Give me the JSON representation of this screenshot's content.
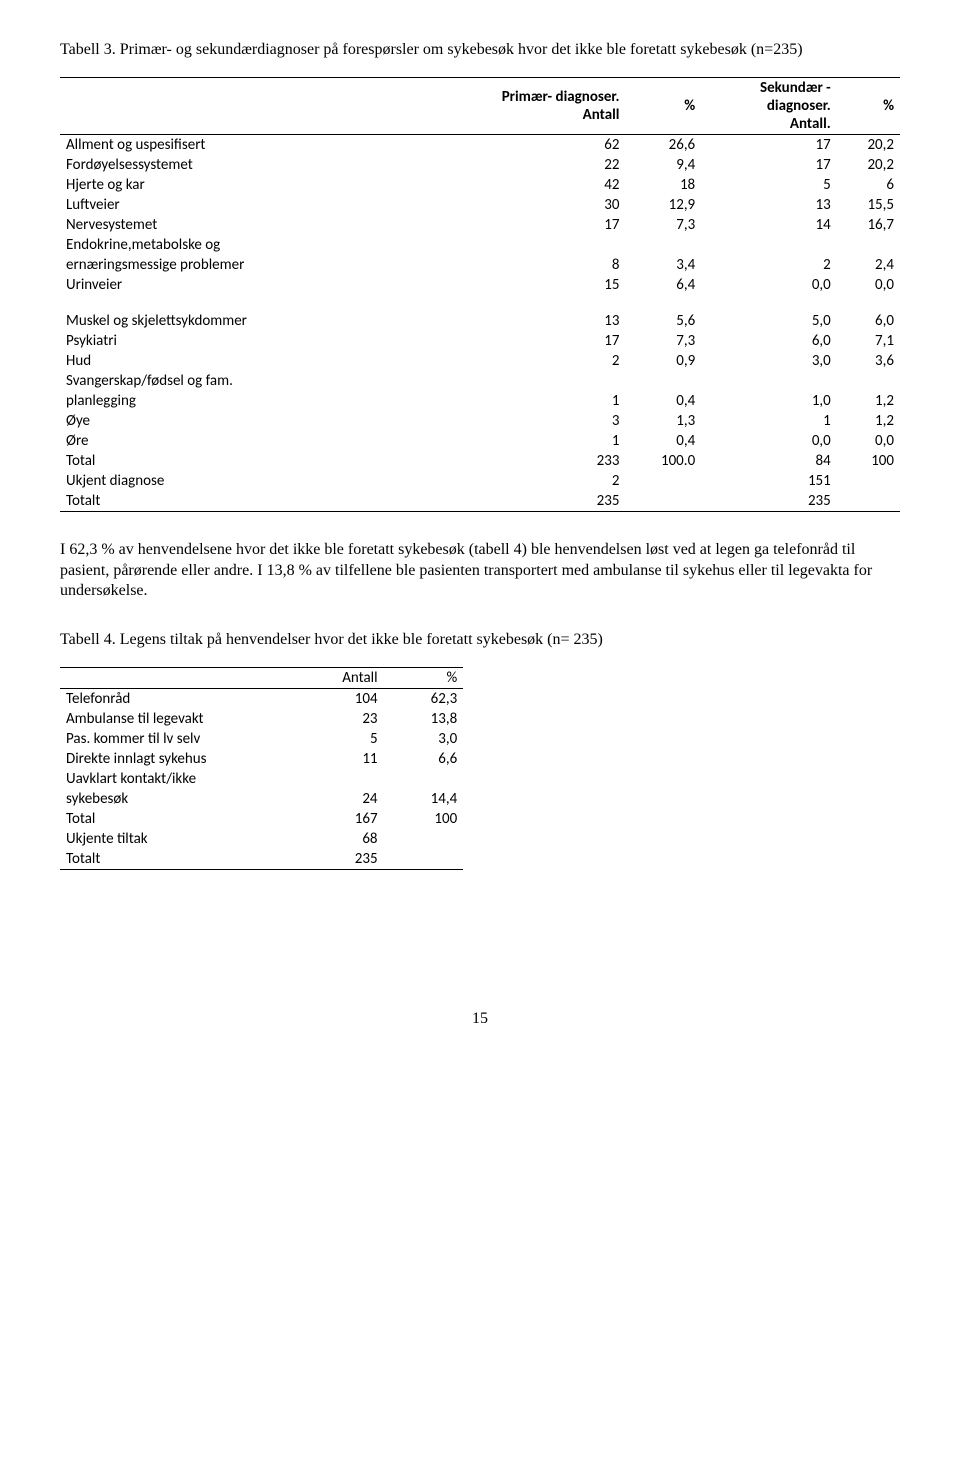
{
  "table3": {
    "caption": "Tabell 3. Primær- og sekundærdiagnoser på forespørsler om sykebesøk hvor det ikke ble foretatt sykebesøk (n=235)",
    "header": {
      "col1": "",
      "col2_line1": "Primær- diagnoser.",
      "col2_line2": "Antall",
      "col3": "%",
      "col4_line1": "Sekundær -",
      "col4_line2": "diagnoser.",
      "col4_line3": "Antall.",
      "col5": "%"
    },
    "rows1": [
      {
        "label": "Allment og uspesifisert",
        "c2": "62",
        "c3": "26,6",
        "c4": "17",
        "c5": "20,2"
      },
      {
        "label": "Fordøyelsessystemet",
        "c2": "22",
        "c3": "9,4",
        "c4": "17",
        "c5": "20,2"
      },
      {
        "label": "Hjerte og kar",
        "c2": "42",
        "c3": "18",
        "c4": "5",
        "c5": "6"
      },
      {
        "label": "Luftveier",
        "c2": "30",
        "c3": "12,9",
        "c4": "13",
        "c5": "15,5"
      },
      {
        "label": "Nervesystemet",
        "c2": "17",
        "c3": "7,3",
        "c4": "14",
        "c5": "16,7"
      }
    ],
    "row_endokrine_l1": "Endokrine,metabolske og",
    "row_endokrine_l2": {
      "label": "ernæringsmessige problemer",
      "c2": "8",
      "c3": "3,4",
      "c4": "2",
      "c5": "2,4"
    },
    "row_urinveier": {
      "label": "Urinveier",
      "c2": "15",
      "c3": "6,4",
      "c4": "0,0",
      "c5": "0,0"
    },
    "rows2": [
      {
        "label": "Muskel og skjelettsykdommer",
        "c2": "13",
        "c3": "5,6",
        "c4": "5,0",
        "c5": "6,0"
      },
      {
        "label": "Psykiatri",
        "c2": "17",
        "c3": "7,3",
        "c4": "6,0",
        "c5": "7,1"
      },
      {
        "label": "Hud",
        "c2": "2",
        "c3": "0,9",
        "c4": "3,0",
        "c5": "3,6"
      }
    ],
    "row_svangerskap_l1": "Svangerskap/fødsel og fam.",
    "row_svangerskap_l2": {
      "label": "planlegging",
      "c2": "1",
      "c3": "0,4",
      "c4": "1,0",
      "c5": "1,2"
    },
    "rows3": [
      {
        "label": "Øye",
        "c2": "3",
        "c3": "1,3",
        "c4": "1",
        "c5": "1,2"
      },
      {
        "label": "Øre",
        "c2": "1",
        "c3": "0,4",
        "c4": "0,0",
        "c5": "0,0"
      },
      {
        "label": "Total",
        "c2": "233",
        "c3": "100.0",
        "c4": "84",
        "c5": "100"
      },
      {
        "label": "Ukjent diagnose",
        "c2": "2",
        "c3": "",
        "c4": "151",
        "c5": ""
      },
      {
        "label": "Totalt",
        "c2": "235",
        "c3": "",
        "c4": "235",
        "c5": ""
      }
    ]
  },
  "paragraph1": "I 62,3 % av henvendelsene hvor det ikke ble foretatt sykebesøk (tabell 4) ble henvendelsen løst ved at legen ga telefonråd til pasient, pårørende eller andre. I 13,8 % av tilfellene ble pasienten transportert med ambulanse til sykehus eller til legevakta for undersøkelse.",
  "table4": {
    "caption": "Tabell 4. Legens tiltak på henvendelser hvor det ikke ble foretatt sykebesøk (n= 235)",
    "header": {
      "col2": "Antall",
      "col3": "%"
    },
    "rows": [
      {
        "label": "Telefonråd",
        "c2": "104",
        "c3": "62,3"
      },
      {
        "label": "Ambulanse til legevakt",
        "c2": "23",
        "c3": "13,8"
      },
      {
        "label": "Pas. kommer til lv selv",
        "c2": "5",
        "c3": "3,0"
      },
      {
        "label": "Direkte innlagt sykehus",
        "c2": "11",
        "c3": "6,6"
      }
    ],
    "row_uavklart_l1": "Uavklart kontakt/ikke",
    "row_uavklart_l2": {
      "label": "sykebesøk",
      "c2": "24",
      "c3": "14,4"
    },
    "rows2": [
      {
        "label": "Total",
        "c2": "167",
        "c3": "100"
      },
      {
        "label": "Ukjente tiltak",
        "c2": "68",
        "c3": ""
      },
      {
        "label": "Totalt",
        "c2": "235",
        "c3": ""
      }
    ]
  },
  "page_number": "15"
}
